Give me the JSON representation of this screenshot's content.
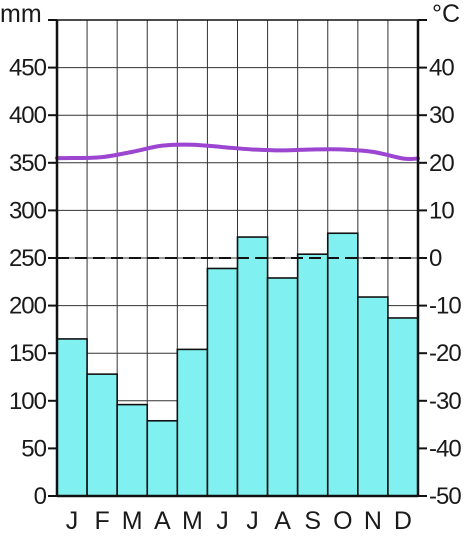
{
  "chart_data": {
    "type": "bar",
    "title": "",
    "left_axis": {
      "unit": "mm",
      "ylim": [
        0,
        500
      ],
      "ticks": [
        0,
        50,
        100,
        150,
        200,
        250,
        300,
        350,
        400,
        450
      ],
      "tick_labels": [
        "0",
        "50",
        "100",
        "150",
        "200",
        "250",
        "300",
        "350",
        "400",
        "450"
      ]
    },
    "right_axis": {
      "unit": "°C",
      "ylim": [
        -50,
        50
      ],
      "ticks": [
        -50,
        -40,
        -30,
        -20,
        -10,
        0,
        10,
        20,
        30,
        40
      ],
      "tick_labels": [
        "-50",
        "-40",
        "-30",
        "-20",
        "-10",
        "0",
        "10",
        "20",
        "30",
        "40"
      ]
    },
    "categories": [
      "J",
      "F",
      "M",
      "A",
      "M",
      "J",
      "J",
      "A",
      "S",
      "O",
      "N",
      "D"
    ],
    "series": [
      {
        "kind": "bar",
        "axis": "left",
        "color": "#80f0f0",
        "values": [
          165,
          128,
          96,
          79,
          154,
          239,
          272,
          229,
          254,
          276,
          209,
          187
        ]
      },
      {
        "kind": "line",
        "axis": "right",
        "color": "#9b45d0",
        "values": [
          21.0,
          21.2,
          22.3,
          23.6,
          23.8,
          23.3,
          22.8,
          22.6,
          22.8,
          22.8,
          22.3,
          20.9
        ]
      }
    ],
    "reference_line": {
      "axis": "right",
      "value": 0,
      "style": "dashed"
    },
    "grid": true
  }
}
